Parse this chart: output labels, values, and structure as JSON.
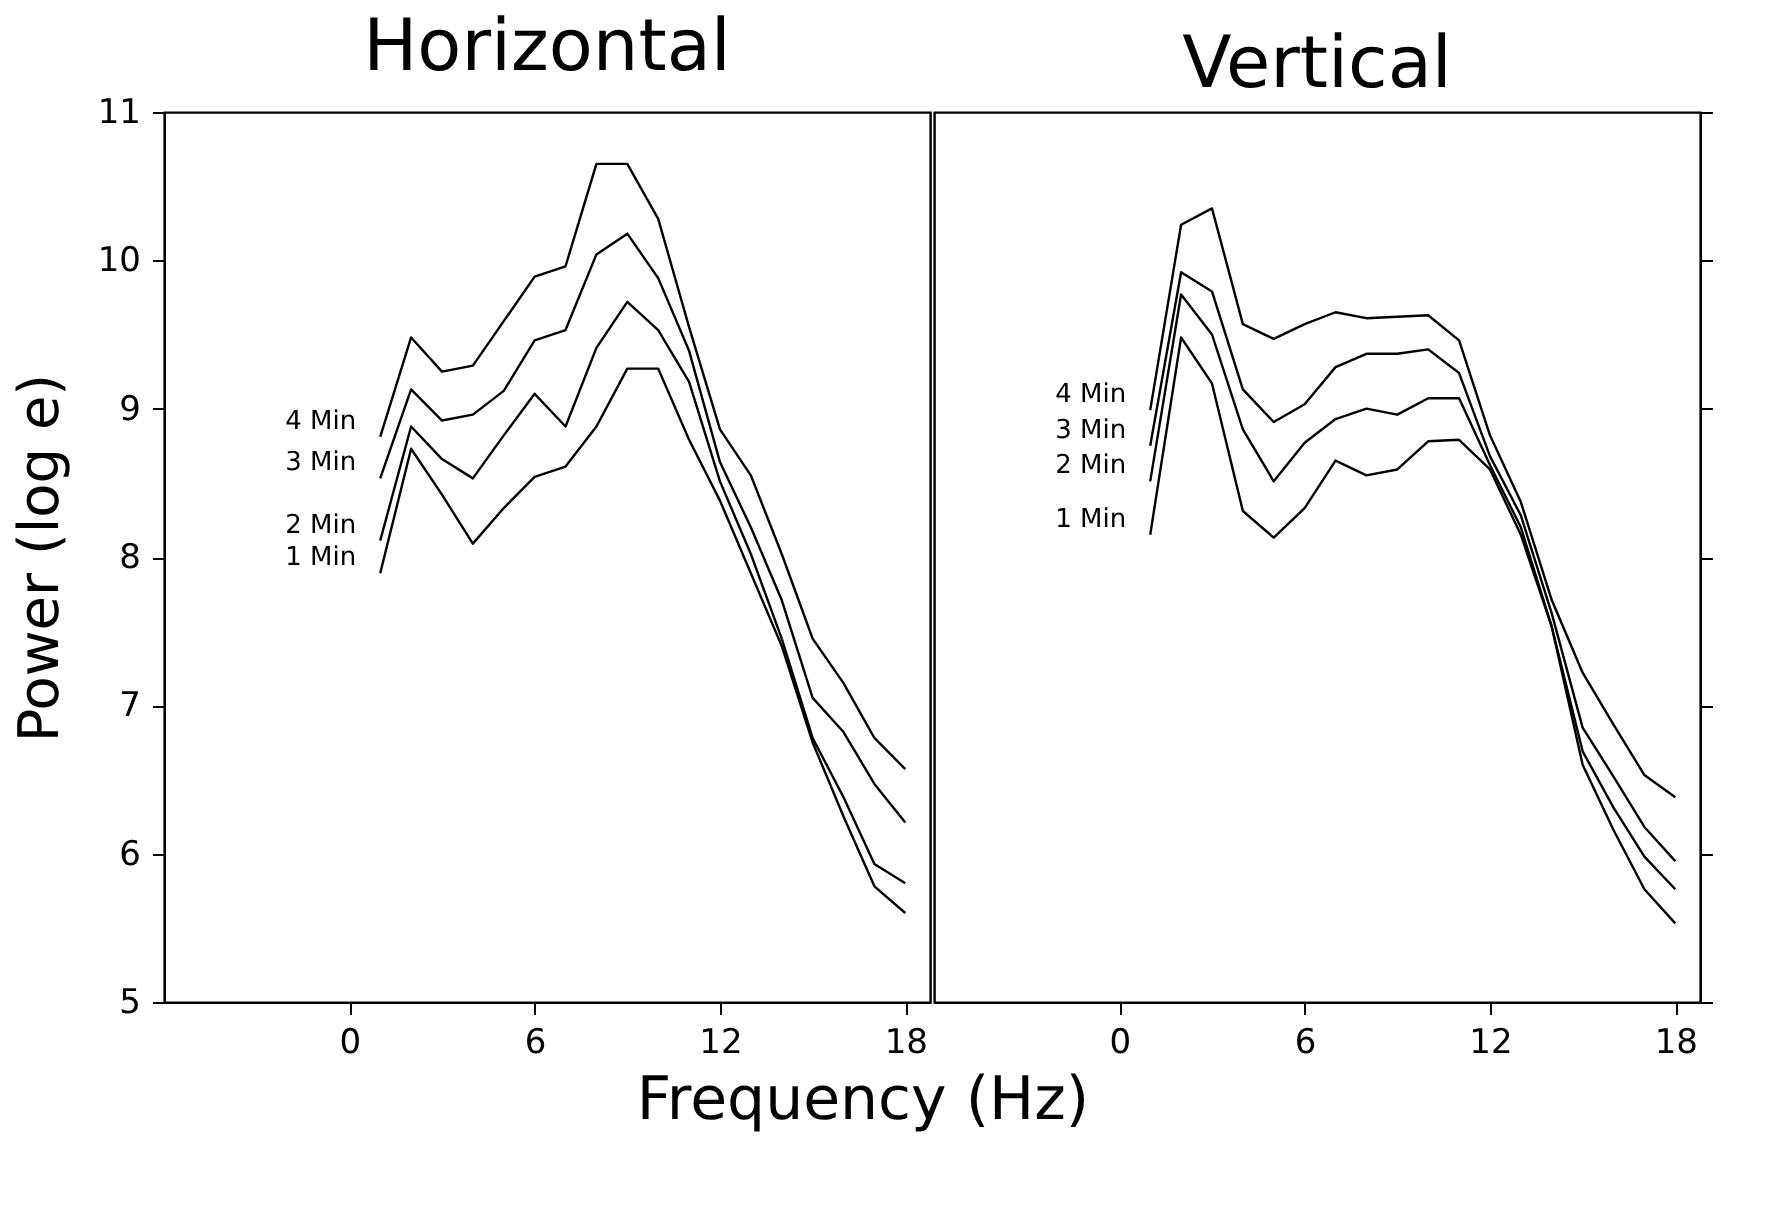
{
  "chart_data": [
    {
      "type": "line",
      "title": "Horizontal",
      "ylabel": "Power (log e)",
      "xlabel": "Frequency (Hz)",
      "xlim": [
        -6,
        18.8
      ],
      "xticks": [
        0,
        6,
        12,
        18
      ],
      "ylim": [
        5,
        11
      ],
      "yticks": [
        5,
        6,
        7,
        8,
        9,
        10,
        11
      ],
      "grid": false,
      "legend": false,
      "marker": "none",
      "line_style": "solid",
      "x": [
        1,
        2,
        3,
        4,
        5,
        6,
        7,
        8,
        9,
        10,
        11,
        12,
        13,
        14,
        15,
        16,
        17,
        18
      ],
      "series": [
        {
          "name": "4 Min",
          "color": "#000000",
          "values": [
            8.81,
            9.48,
            9.25,
            9.29,
            9.59,
            9.89,
            9.96,
            10.65,
            10.65,
            10.28,
            9.55,
            8.86,
            8.55,
            8.02,
            7.45,
            7.15,
            6.78,
            6.57
          ]
        },
        {
          "name": "3 Min",
          "color": "#000000",
          "values": [
            8.53,
            9.13,
            8.92,
            8.96,
            9.12,
            9.46,
            9.53,
            10.04,
            10.18,
            9.88,
            9.39,
            8.64,
            8.2,
            7.71,
            7.05,
            6.82,
            6.47,
            6.21
          ]
        },
        {
          "name": "2 Min",
          "color": "#000000",
          "values": [
            8.11,
            8.88,
            8.66,
            8.53,
            8.82,
            9.1,
            8.88,
            9.41,
            9.72,
            9.53,
            9.18,
            8.51,
            8.02,
            7.45,
            6.78,
            6.38,
            5.93,
            5.8
          ]
        },
        {
          "name": "1 Min",
          "color": "#000000",
          "values": [
            7.89,
            8.73,
            8.42,
            8.09,
            8.33,
            8.54,
            8.61,
            8.88,
            9.27,
            9.27,
            8.79,
            8.38,
            7.89,
            7.4,
            6.75,
            6.25,
            5.78,
            5.6
          ]
        }
      ]
    },
    {
      "type": "line",
      "title": "Vertical",
      "xlim": [
        -6,
        18.8
      ],
      "xticks": [
        0,
        6,
        12,
        18
      ],
      "ylim": [
        5,
        11
      ],
      "yticks": [
        5,
        6,
        7,
        8,
        9,
        10,
        11
      ],
      "tick_labels": "x",
      "grid": false,
      "legend": false,
      "marker": "none",
      "line_style": "solid",
      "x": [
        1,
        2,
        3,
        4,
        5,
        6,
        7,
        8,
        9,
        10,
        11,
        12,
        13,
        14,
        15,
        16,
        17,
        18
      ],
      "series": [
        {
          "name": "4 Min",
          "color": "#000000",
          "values": [
            8.99,
            10.24,
            10.35,
            9.57,
            9.47,
            9.57,
            9.65,
            9.61,
            9.62,
            9.63,
            9.46,
            8.82,
            8.37,
            7.71,
            7.22,
            6.87,
            6.53,
            6.38
          ]
        },
        {
          "name": "3 Min",
          "color": "#000000",
          "values": [
            8.75,
            9.92,
            9.79,
            9.13,
            8.91,
            9.03,
            9.28,
            9.37,
            9.37,
            9.4,
            9.24,
            8.68,
            8.28,
            7.62,
            6.85,
            6.52,
            6.18,
            5.95
          ]
        },
        {
          "name": "2 Min",
          "color": "#000000",
          "values": [
            8.51,
            9.77,
            9.5,
            8.86,
            8.51,
            8.77,
            8.93,
            9.0,
            8.96,
            9.07,
            9.07,
            8.62,
            8.2,
            7.53,
            6.69,
            6.31,
            5.98,
            5.76
          ]
        },
        {
          "name": "1 Min",
          "color": "#000000",
          "values": [
            8.15,
            9.48,
            9.17,
            8.31,
            8.13,
            8.33,
            8.65,
            8.55,
            8.59,
            8.78,
            8.79,
            8.59,
            8.15,
            7.53,
            6.6,
            6.16,
            5.76,
            5.53
          ]
        }
      ]
    }
  ]
}
